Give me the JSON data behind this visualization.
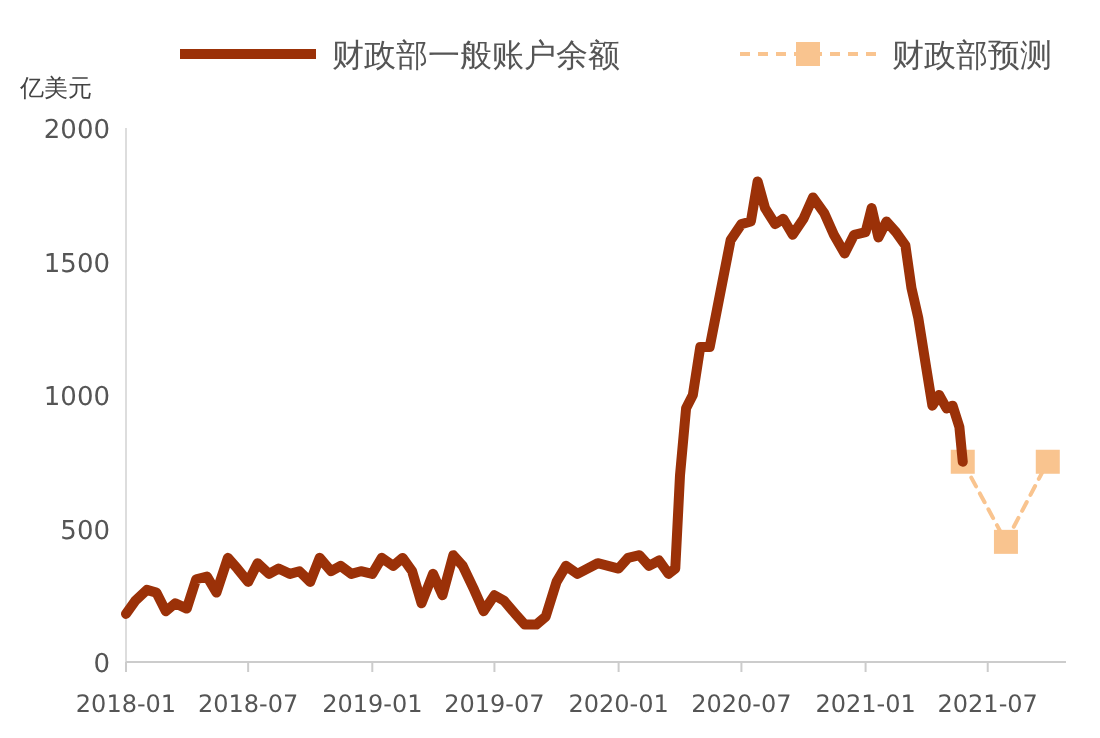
{
  "chart_data": {
    "type": "line",
    "ylabel": "亿美元",
    "xlim": [
      "2018-01-01",
      "2021-10-25"
    ],
    "ylim": [
      0,
      2000
    ],
    "yticks": [
      0,
      500,
      1000,
      1500,
      2000
    ],
    "xticks": [
      {
        "value": "2018-01-01",
        "label": "2018-01"
      },
      {
        "value": "2018-07-01",
        "label": "2018-07"
      },
      {
        "value": "2019-01-01",
        "label": "2019-01"
      },
      {
        "value": "2019-07-01",
        "label": "2019-07"
      },
      {
        "value": "2020-01-01",
        "label": "2020-01"
      },
      {
        "value": "2020-07-01",
        "label": "2020-07"
      },
      {
        "value": "2021-01-01",
        "label": "2021-01"
      },
      {
        "value": "2021-07-01",
        "label": "2021-07"
      }
    ],
    "grid": false,
    "legend": "top",
    "series": [
      {
        "name": "财政部预测",
        "color": "#f9c48f",
        "line_style": "dashed",
        "marker": "square",
        "x": [
          "2021-05-25",
          "2021-07-28",
          "2021-09-28"
        ],
        "values": [
          750,
          450,
          750
        ]
      },
      {
        "name": "财政部一般账户余额",
        "color": "#9b3108",
        "line_style": "solid",
        "marker": "none",
        "x": [
          "2018-01-01",
          "2018-01-15",
          "2018-02-01",
          "2018-02-15",
          "2018-03-01",
          "2018-03-15",
          "2018-04-01",
          "2018-04-15",
          "2018-05-01",
          "2018-05-15",
          "2018-06-01",
          "2018-06-15",
          "2018-07-01",
          "2018-07-15",
          "2018-08-01",
          "2018-08-15",
          "2018-09-01",
          "2018-09-15",
          "2018-10-01",
          "2018-10-15",
          "2018-11-01",
          "2018-11-15",
          "2018-12-01",
          "2018-12-15",
          "2019-01-01",
          "2019-01-15",
          "2019-02-01",
          "2019-02-15",
          "2019-03-01",
          "2019-03-15",
          "2019-04-01",
          "2019-04-15",
          "2019-05-01",
          "2019-05-15",
          "2019-06-01",
          "2019-06-15",
          "2019-07-01",
          "2019-07-15",
          "2019-08-01",
          "2019-08-15",
          "2019-09-01",
          "2019-09-15",
          "2019-10-01",
          "2019-10-15",
          "2019-11-01",
          "2019-12-01",
          "2020-01-01",
          "2020-01-15",
          "2020-02-01",
          "2020-02-15",
          "2020-03-01",
          "2020-03-15",
          "2020-03-25",
          "2020-04-01",
          "2020-04-10",
          "2020-04-20",
          "2020-05-01",
          "2020-05-15",
          "2020-06-01",
          "2020-06-15",
          "2020-07-01",
          "2020-07-15",
          "2020-07-25",
          "2020-08-05",
          "2020-08-20",
          "2020-09-01",
          "2020-09-15",
          "2020-10-01",
          "2020-10-15",
          "2020-11-01",
          "2020-11-15",
          "2020-12-01",
          "2020-12-15",
          "2021-01-01",
          "2021-01-10",
          "2021-01-20",
          "2021-02-01",
          "2021-02-15",
          "2021-03-01",
          "2021-03-10",
          "2021-03-20",
          "2021-04-01",
          "2021-04-10",
          "2021-04-20",
          "2021-05-01",
          "2021-05-10",
          "2021-05-20",
          "2021-05-25"
        ],
        "values": [
          180,
          230,
          270,
          260,
          190,
          220,
          200,
          310,
          320,
          260,
          390,
          350,
          300,
          370,
          330,
          350,
          330,
          340,
          300,
          390,
          340,
          360,
          330,
          340,
          330,
          390,
          360,
          390,
          340,
          220,
          330,
          250,
          400,
          360,
          270,
          190,
          250,
          230,
          180,
          140,
          140,
          170,
          300,
          360,
          330,
          370,
          350,
          390,
          400,
          360,
          380,
          330,
          350,
          700,
          950,
          1000,
          1180,
          1180,
          1400,
          1580,
          1640,
          1650,
          1800,
          1700,
          1640,
          1660,
          1600,
          1660,
          1740,
          1680,
          1600,
          1530,
          1600,
          1610,
          1700,
          1590,
          1650,
          1610,
          1560,
          1400,
          1290,
          1100,
          960,
          1000,
          950,
          960,
          880,
          750
        ]
      }
    ]
  }
}
